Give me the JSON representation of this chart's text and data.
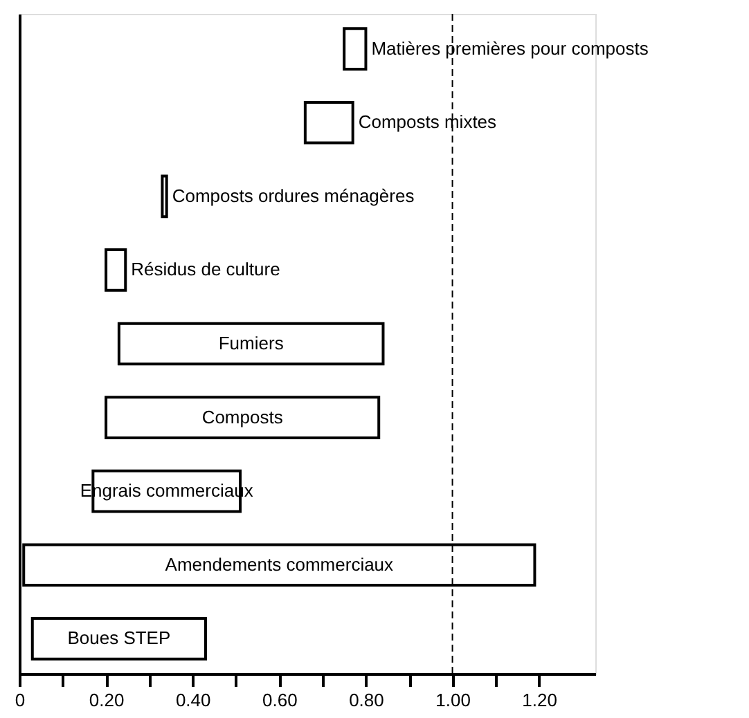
{
  "chart_data": {
    "type": "bar",
    "orientation": "horizontal",
    "categories": [
      "Matières premières pour composts",
      "Composts mixtes",
      "Composts ordures ménagères",
      "Résidus de culture",
      "Fumiers",
      "Composts",
      "Engrais commerciaux",
      "Amendements commerciaux",
      "Boues STEP"
    ],
    "base": [
      0.75,
      0.66,
      0.33,
      0.2,
      0.23,
      0.2,
      0.17,
      0.01,
      0.03
    ],
    "values": [
      0.05,
      0.11,
      0.01,
      0.045,
      0.61,
      0.63,
      0.34,
      1.18,
      0.4
    ],
    "color": "#ffffff",
    "xlim": [
      0,
      1.33
    ],
    "xticks": [
      0,
      {
        "value": 0.1,
        "label": null
      },
      {
        "value": 0.2,
        "label": "0.20"
      },
      {
        "value": 0.3,
        "label": null
      },
      {
        "value": 0.4,
        "label": "0.40"
      },
      {
        "value": 0.5,
        "label": null
      },
      {
        "value": 0.6,
        "label": "0.60"
      },
      {
        "value": 0.7,
        "label": null
      },
      {
        "value": 0.8,
        "label": "0.80"
      },
      {
        "value": 0.9,
        "label": null
      },
      {
        "value": 1.0,
        "label": "1.00"
      },
      {
        "value": 1.1,
        "label": null
      },
      {
        "value": 1.2,
        "label": "1.20"
      }
    ],
    "ref_lines": [
      {
        "axis": "x",
        "value": 1.0,
        "line_style": "dashed"
      }
    ],
    "tick_labels": "x",
    "grid": false
  }
}
